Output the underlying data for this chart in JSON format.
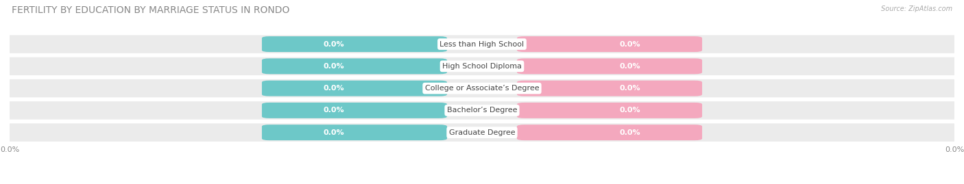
{
  "title": "FERTILITY BY EDUCATION BY MARRIAGE STATUS IN RONDO",
  "source": "Source: ZipAtlas.com",
  "categories": [
    "Less than High School",
    "High School Diploma",
    "College or Associate’s Degree",
    "Bachelor’s Degree",
    "Graduate Degree"
  ],
  "married_values": [
    0.0,
    0.0,
    0.0,
    0.0,
    0.0
  ],
  "unmarried_values": [
    0.0,
    0.0,
    0.0,
    0.0,
    0.0
  ],
  "married_color": "#6dc8c8",
  "unmarried_color": "#f4a8be",
  "row_bg_color": "#ebebeb",
  "bg_color": "#ffffff",
  "value_label_color": "#ffffff",
  "cat_label_color": "#444444",
  "title_color": "#888888",
  "source_color": "#aaaaaa",
  "tick_color": "#888888",
  "title_fontsize": 10,
  "label_fontsize": 8,
  "cat_fontsize": 8,
  "tick_fontsize": 8,
  "source_fontsize": 7
}
